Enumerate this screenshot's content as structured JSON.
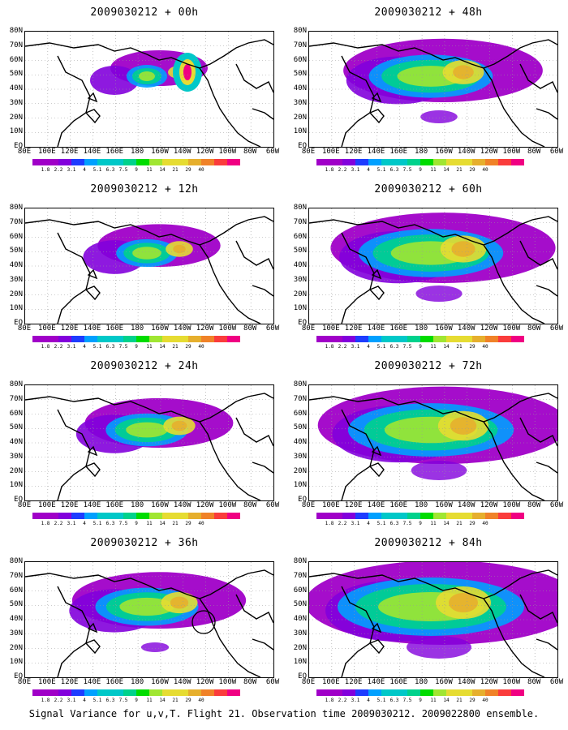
{
  "panels": [
    {
      "title": "2009030212 + 00h",
      "hours": 0
    },
    {
      "title": "2009030212 + 48h",
      "hours": 48
    },
    {
      "title": "2009030212 + 12h",
      "hours": 12
    },
    {
      "title": "2009030212 + 60h",
      "hours": 60
    },
    {
      "title": "2009030212 + 24h",
      "hours": 24
    },
    {
      "title": "2009030212 + 72h",
      "hours": 72
    },
    {
      "title": "2009030212 + 36h",
      "hours": 36
    },
    {
      "title": "2009030212 + 84h",
      "hours": 84
    }
  ],
  "lat_labels": [
    "80N",
    "70N",
    "60N",
    "50N",
    "40N",
    "30N",
    "20N",
    "10N",
    "EQ"
  ],
  "lon_labels": [
    "80E",
    "100E",
    "120E",
    "140E",
    "160E",
    "180",
    "160W",
    "140W",
    "120W",
    "100W",
    "80W",
    "60W"
  ],
  "colorbar": {
    "labels": [
      "1.8",
      "2.2",
      "3.1",
      "4",
      "5.1",
      "6.3",
      "7.5",
      "9",
      "11",
      "14",
      "21",
      "29",
      "40"
    ],
    "colors": [
      "#a000c8",
      "#8200dc",
      "#1e3cff",
      "#00a0ff",
      "#00c8c8",
      "#00d28c",
      "#00dc00",
      "#a0e632",
      "#e6dc32",
      "#e6af2d",
      "#f08228",
      "#fa3c3c",
      "#f00082"
    ]
  },
  "caption": "Signal Variance for u,v,T. Flight 21. Observation time 2009030212. 2009022800 ensemble."
}
